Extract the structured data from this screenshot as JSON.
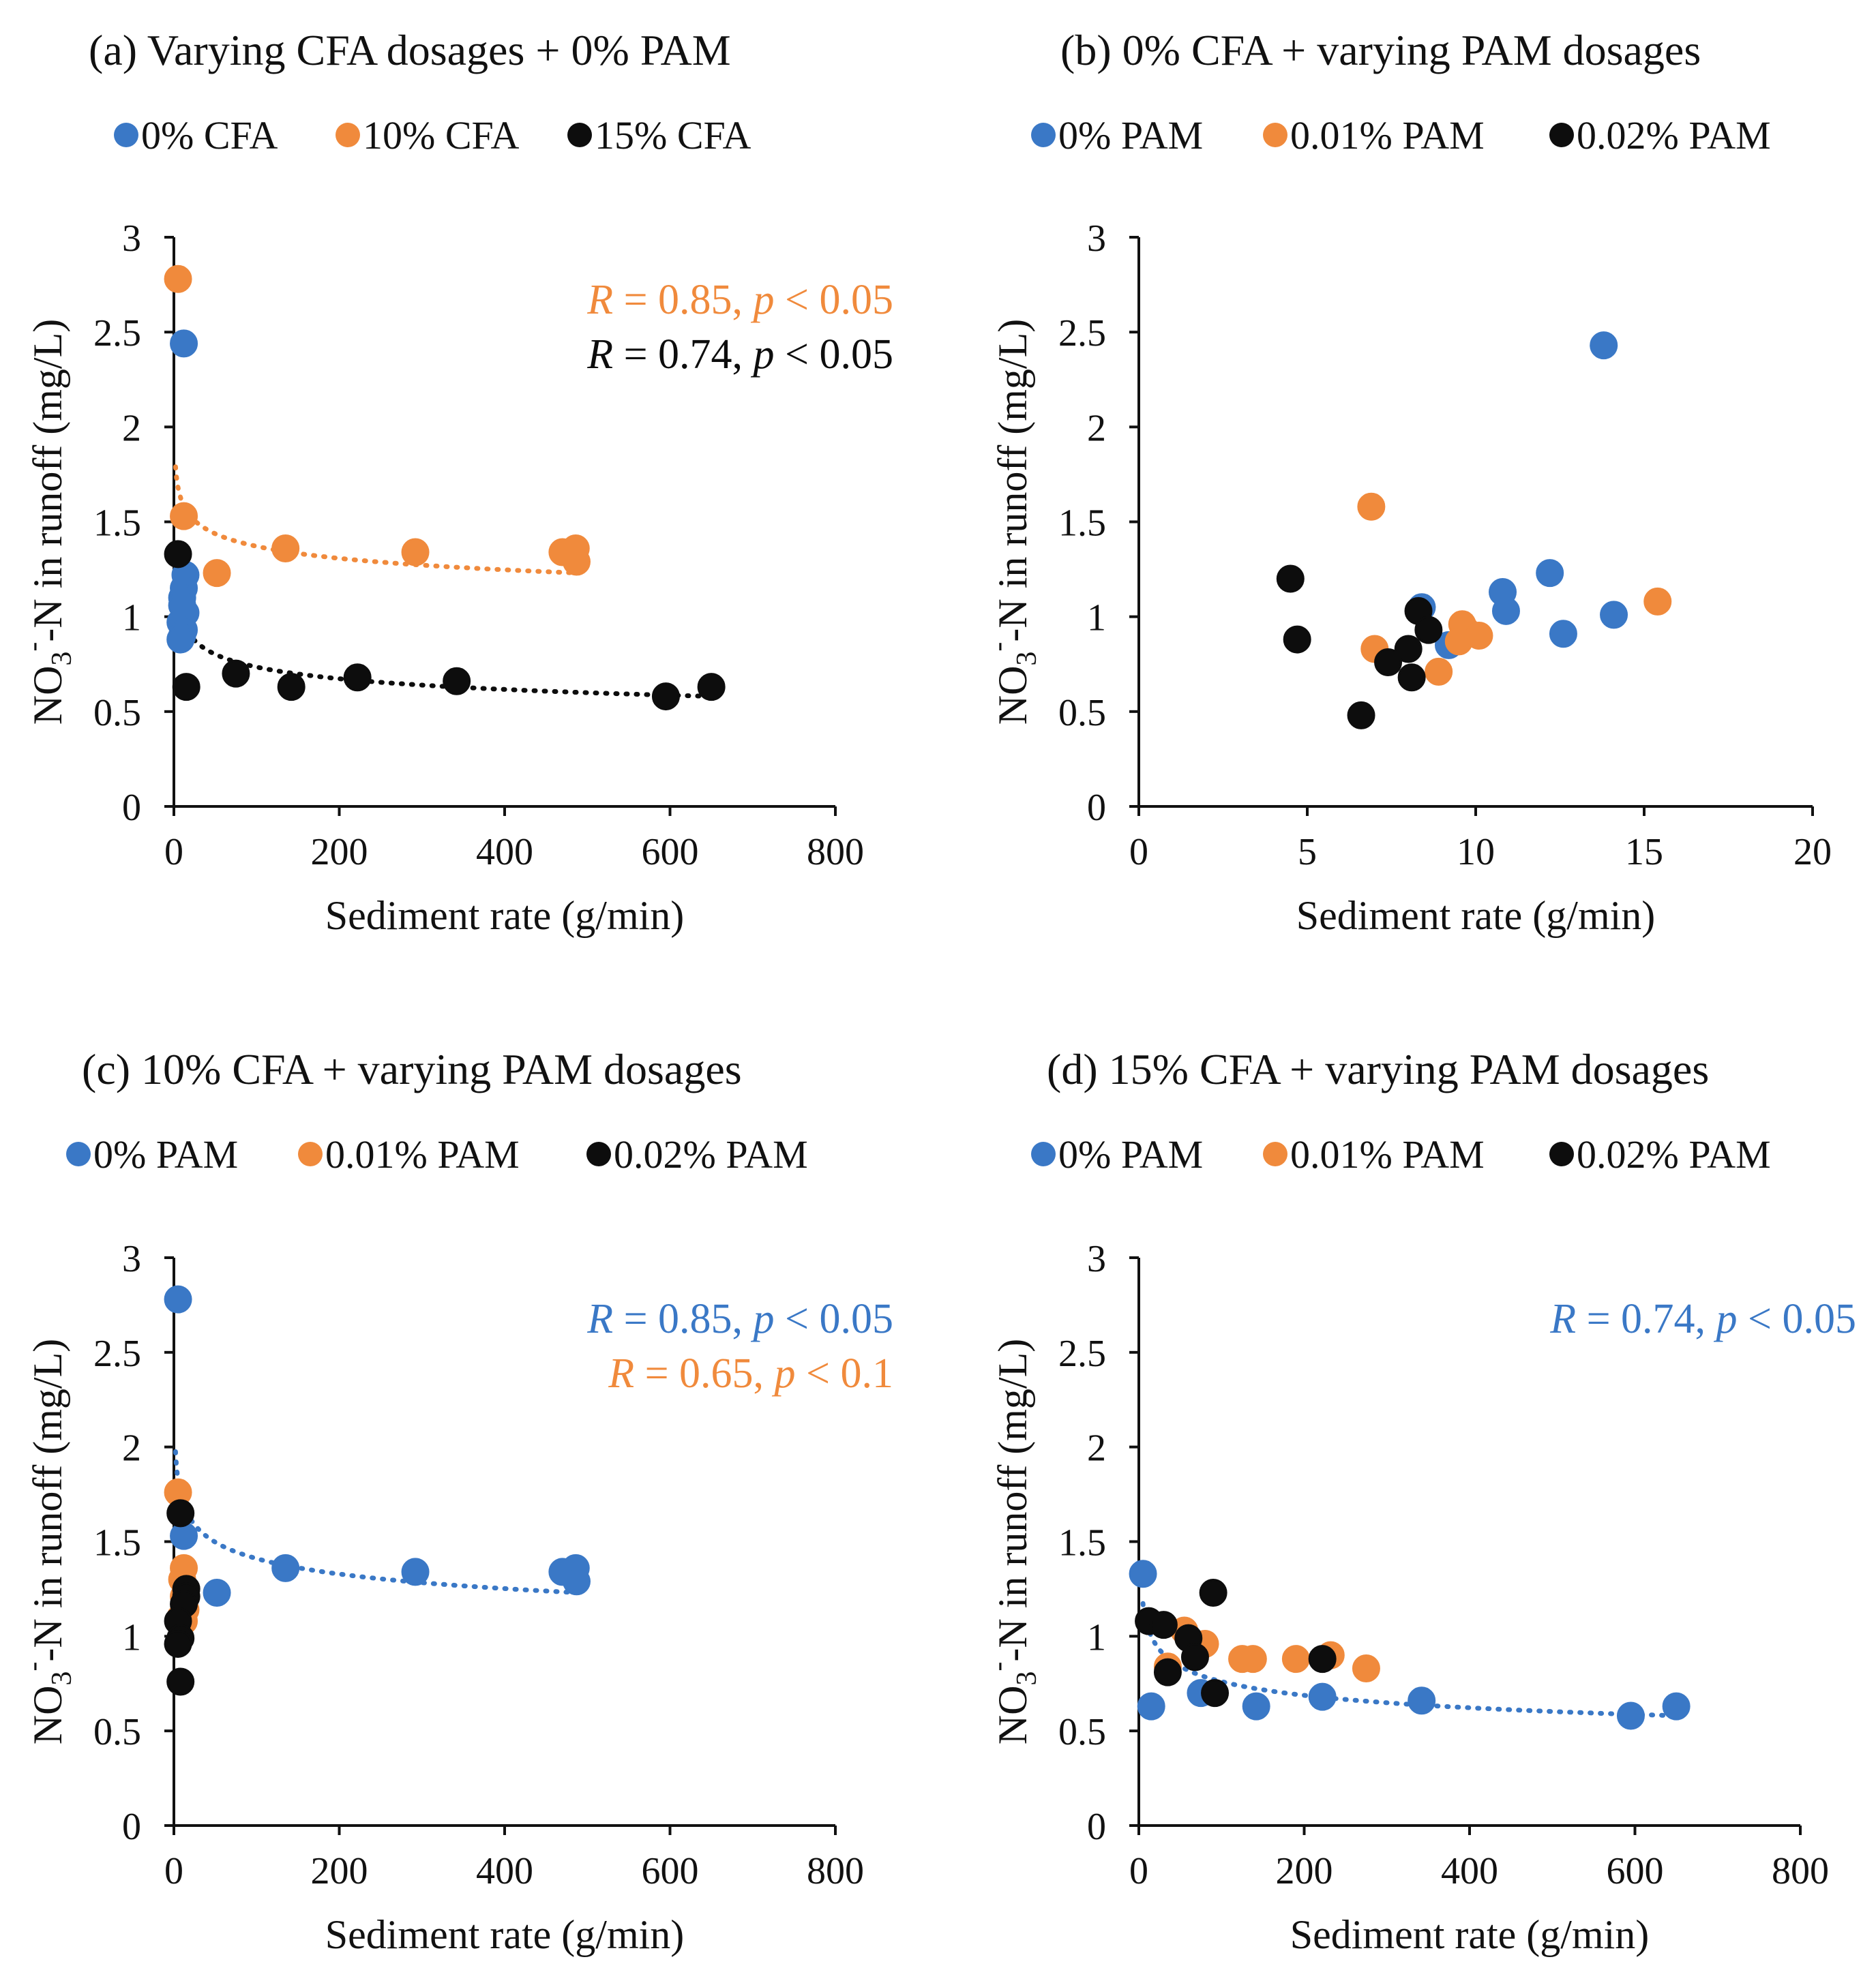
{
  "colors": {
    "blue": "#3a78c6",
    "orange": "#f08a3c",
    "black": "#0d0d0d"
  },
  "axis_titles": {
    "y_prefix": "NO",
    "y_sub": "3",
    "y_sup": "-",
    "y_suffix": "-N in runoff (mg/L)"
  },
  "chart_data": [
    {
      "id": "a",
      "type": "scatter",
      "title": "(a) Varying CFA dosages + 0% PAM",
      "xlabel": "Sediment rate (g/min)",
      "ylabel": "NO3--N in runoff (mg/L)",
      "xlim": [
        0,
        800
      ],
      "ylim": [
        0,
        3
      ],
      "xticks": [
        0,
        200,
        400,
        600,
        800
      ],
      "yticks": [
        0,
        0.5,
        1,
        1.5,
        2,
        2.5,
        3
      ],
      "xtick_labels": [
        "0",
        "200",
        "400",
        "600",
        "800"
      ],
      "ytick_labels": [
        "0",
        "0.5",
        "1",
        "1.5",
        "2",
        "2.5",
        "3"
      ],
      "series": [
        {
          "name": "0% CFA",
          "color": "blue",
          "x": [
            12,
            14,
            12,
            10,
            14,
            8,
            12,
            10,
            8,
            10
          ],
          "y": [
            2.44,
            1.22,
            1.15,
            1.1,
            1.02,
            0.97,
            0.93,
            0.9,
            0.88,
            1.06
          ]
        },
        {
          "name": "10% CFA",
          "color": "orange",
          "x": [
            5,
            12,
            52,
            135,
            292,
            470,
            486,
            487
          ],
          "y": [
            2.78,
            1.53,
            1.23,
            1.36,
            1.34,
            1.34,
            1.36,
            1.29
          ],
          "fit": {
            "x_min": 2,
            "x_max": 490,
            "p0": [
              20,
              1.53
            ],
            "p1": [
              490,
              1.23
            ]
          }
        },
        {
          "name": "15% CFA",
          "color": "black",
          "x": [
            5,
            15,
            75,
            142,
            222,
            342,
            595,
            650
          ],
          "y": [
            1.33,
            0.63,
            0.7,
            0.63,
            0.68,
            0.66,
            0.58,
            0.63
          ],
          "fit": {
            "x_min": 5,
            "x_max": 650,
            "p0": [
              20,
              0.9
            ],
            "p1": [
              650,
              0.58
            ]
          }
        }
      ],
      "annotations": [
        {
          "r_label": "R",
          "r_text": " = 0.85, ",
          "p_label": "p",
          "p_text": " < 0.05",
          "color": "orange"
        },
        {
          "r_label": "R",
          "r_text": " = 0.74, ",
          "p_label": "p",
          "p_text": " < 0.05",
          "color": "black"
        }
      ]
    },
    {
      "id": "b",
      "type": "scatter",
      "title": "(b) 0% CFA + varying PAM dosages",
      "xlabel": "Sediment rate (g/min)",
      "ylabel": "NO3--N in runoff (mg/L)",
      "xlim": [
        0,
        20
      ],
      "ylim": [
        0,
        3
      ],
      "xticks": [
        0,
        5,
        10,
        15,
        20
      ],
      "yticks": [
        0,
        0.5,
        1,
        1.5,
        2,
        2.5,
        3
      ],
      "xtick_labels": [
        "0",
        "5",
        "10",
        "15",
        "20"
      ],
      "ytick_labels": [
        "0",
        "0.5",
        "1",
        "1.5",
        "2",
        "2.5",
        "3"
      ],
      "series": [
        {
          "name": "0% PAM",
          "color": "blue",
          "x": [
            13.8,
            12.2,
            10.8,
            10.9,
            8.4,
            9.2,
            12.6,
            14.1
          ],
          "y": [
            2.43,
            1.23,
            1.13,
            1.03,
            1.05,
            0.85,
            0.91,
            1.01
          ]
        },
        {
          "name": "0.01% PAM",
          "color": "orange",
          "x": [
            6.9,
            7.0,
            8.9,
            9.6,
            9.7,
            10.1,
            9.5,
            15.4
          ],
          "y": [
            1.58,
            0.83,
            0.71,
            0.96,
            0.93,
            0.9,
            0.87,
            1.08
          ]
        },
        {
          "name": "0.02% PAM",
          "color": "black",
          "x": [
            4.5,
            4.7,
            6.6,
            7.4,
            8.0,
            8.3,
            8.6,
            8.1
          ],
          "y": [
            1.2,
            0.88,
            0.48,
            0.76,
            0.83,
            1.03,
            0.93,
            0.68
          ]
        }
      ],
      "annotations": []
    },
    {
      "id": "c",
      "type": "scatter",
      "title": "(c) 10% CFA + varying PAM dosages",
      "xlabel": "Sediment rate (g/min)",
      "ylabel": "NO3--N in runoff (mg/L)",
      "xlim": [
        0,
        800
      ],
      "ylim": [
        0,
        3
      ],
      "xticks": [
        0,
        200,
        400,
        600,
        800
      ],
      "yticks": [
        0,
        0.5,
        1,
        1.5,
        2,
        2.5,
        3
      ],
      "xtick_labels": [
        "0",
        "200",
        "400",
        "600",
        "800"
      ],
      "ytick_labels": [
        "0",
        "0.5",
        "1",
        "1.5",
        "2",
        "2.5",
        "3"
      ],
      "series": [
        {
          "name": "0% PAM",
          "color": "blue",
          "x": [
            5,
            12,
            52,
            135,
            292,
            470,
            486,
            487
          ],
          "y": [
            2.78,
            1.53,
            1.23,
            1.36,
            1.34,
            1.34,
            1.36,
            1.29
          ],
          "fit": {
            "x_min": 2,
            "x_max": 490,
            "p0": [
              20,
              1.62
            ],
            "p1": [
              490,
              1.23
            ]
          }
        },
        {
          "name": "0.01% PAM",
          "color": "orange",
          "x": [
            5,
            12,
            10,
            12,
            14,
            8,
            12
          ],
          "y": [
            1.76,
            1.36,
            1.3,
            1.21,
            1.14,
            1.1,
            1.08
          ]
        },
        {
          "name": "0.02% PAM",
          "color": "black",
          "x": [
            8,
            15,
            15,
            12,
            5,
            8,
            5,
            8
          ],
          "y": [
            1.65,
            1.25,
            1.21,
            1.17,
            1.08,
            0.99,
            0.96,
            0.76
          ]
        }
      ],
      "annotations": [
        {
          "r_label": "R",
          "r_text": " = 0.85, ",
          "p_label": "p",
          "p_text": " < 0.05",
          "color": "blue"
        },
        {
          "r_label": "R",
          "r_text": " = 0.65, ",
          "p_label": "p",
          "p_text": " < 0.1",
          "color": "orange"
        }
      ]
    },
    {
      "id": "d",
      "type": "scatter",
      "title": "(d) 15% CFA + varying PAM dosages",
      "xlabel": "Sediment rate (g/min)",
      "ylabel": "NO3--N in runoff (mg/L)",
      "xlim": [
        0,
        800
      ],
      "ylim": [
        0,
        3
      ],
      "xticks": [
        0,
        200,
        400,
        600,
        800
      ],
      "yticks": [
        0,
        0.5,
        1,
        1.5,
        2,
        2.5,
        3
      ],
      "xtick_labels": [
        "0",
        "200",
        "400",
        "600",
        "800"
      ],
      "ytick_labels": [
        "0",
        "0.5",
        "1",
        "1.5",
        "2",
        "2.5",
        "3"
      ],
      "series": [
        {
          "name": "0% PAM",
          "color": "blue",
          "x": [
            5,
            15,
            75,
            142,
            222,
            342,
            595,
            650
          ],
          "y": [
            1.33,
            0.63,
            0.7,
            0.63,
            0.68,
            0.66,
            0.58,
            0.63
          ],
          "fit": {
            "x_min": 5,
            "x_max": 650,
            "p0": [
              20,
              0.96
            ],
            "p1": [
              650,
              0.58
            ]
          }
        },
        {
          "name": "0.01% PAM",
          "color": "orange",
          "x": [
            55,
            80,
            125,
            138,
            190,
            232,
            275,
            35
          ],
          "y": [
            1.03,
            0.96,
            0.88,
            0.88,
            0.88,
            0.9,
            0.83,
            0.84
          ]
        },
        {
          "name": "0.02% PAM",
          "color": "black",
          "x": [
            12,
            30,
            60,
            68,
            90,
            222,
            35,
            92
          ],
          "y": [
            1.08,
            1.06,
            0.99,
            0.89,
            1.23,
            0.88,
            0.81,
            0.7
          ]
        }
      ],
      "annotations": [
        {
          "r_label": "R",
          "r_text": " = 0.74, ",
          "p_label": "p",
          "p_text": " < 0.05",
          "color": "blue"
        }
      ]
    }
  ]
}
